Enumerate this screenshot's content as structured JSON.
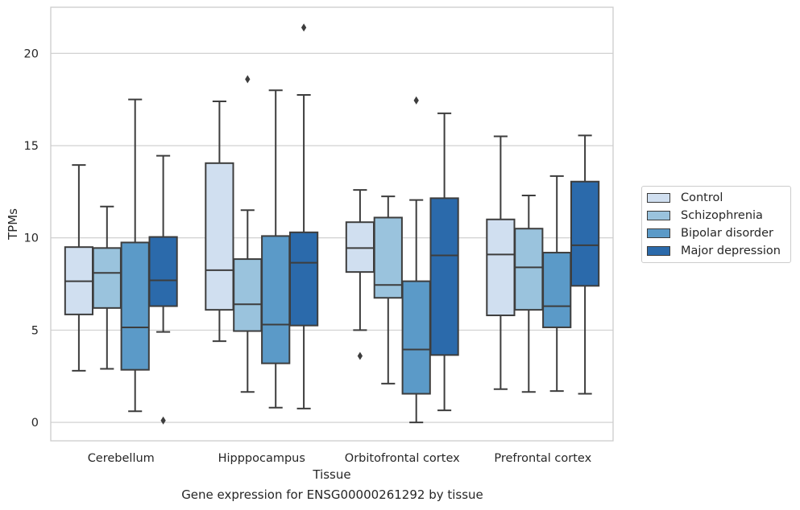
{
  "caption": "Gene expression for ENSG00000261292 by tissue",
  "chart_data": {
    "type": "boxplot",
    "xlabel": "Tissue",
    "ylabel": "TPMs",
    "ylim": [
      -1,
      22.5
    ],
    "yticks": [
      0,
      5,
      10,
      15,
      20
    ],
    "grid": "horizontal",
    "legend_position": "right",
    "categories": [
      "Cerebellum",
      "Hipppocampus",
      "Orbitofrontal cortex",
      "Prefrontal cortex"
    ],
    "series": [
      {
        "name": "Control",
        "color": "#d0dff0",
        "boxes": [
          {
            "whislo": 2.8,
            "q1": 5.85,
            "med": 7.65,
            "q3": 9.5,
            "whishi": 13.95,
            "fliers": []
          },
          {
            "whislo": 4.4,
            "q1": 6.1,
            "med": 8.25,
            "q3": 14.05,
            "whishi": 17.4,
            "fliers": []
          },
          {
            "whislo": 5.0,
            "q1": 8.15,
            "med": 9.45,
            "q3": 10.85,
            "whishi": 12.6,
            "fliers": [
              3.6
            ]
          },
          {
            "whislo": 1.8,
            "q1": 5.8,
            "med": 9.1,
            "q3": 11.0,
            "whishi": 15.5,
            "fliers": []
          }
        ]
      },
      {
        "name": "Schizophrenia",
        "color": "#9ac3dd",
        "boxes": [
          {
            "whislo": 2.9,
            "q1": 6.2,
            "med": 8.1,
            "q3": 9.45,
            "whishi": 11.7,
            "fliers": []
          },
          {
            "whislo": 1.65,
            "q1": 4.95,
            "med": 6.4,
            "q3": 8.85,
            "whishi": 11.5,
            "fliers": [
              18.6
            ]
          },
          {
            "whislo": 2.1,
            "q1": 6.75,
            "med": 7.45,
            "q3": 11.1,
            "whishi": 12.25,
            "fliers": []
          },
          {
            "whislo": 1.65,
            "q1": 6.1,
            "med": 8.4,
            "q3": 10.5,
            "whishi": 12.3,
            "fliers": []
          }
        ]
      },
      {
        "name": "Bipolar disorder",
        "color": "#5b9ac8",
        "boxes": [
          {
            "whislo": 0.6,
            "q1": 2.85,
            "med": 5.15,
            "q3": 9.75,
            "whishi": 17.5,
            "fliers": []
          },
          {
            "whislo": 0.8,
            "q1": 3.2,
            "med": 5.3,
            "q3": 10.1,
            "whishi": 18.0,
            "fliers": []
          },
          {
            "whislo": 0.0,
            "q1": 1.55,
            "med": 3.95,
            "q3": 7.65,
            "whishi": 12.05,
            "fliers": [
              17.45
            ]
          },
          {
            "whislo": 1.7,
            "q1": 5.15,
            "med": 6.3,
            "q3": 9.2,
            "whishi": 13.35,
            "fliers": []
          }
        ]
      },
      {
        "name": "Major depression",
        "color": "#2b6aab",
        "boxes": [
          {
            "whislo": 4.9,
            "q1": 6.3,
            "med": 7.7,
            "q3": 10.05,
            "whishi": 14.45,
            "fliers": [
              0.1
            ]
          },
          {
            "whislo": 0.75,
            "q1": 5.25,
            "med": 8.65,
            "q3": 10.3,
            "whishi": 17.75,
            "fliers": [
              21.4
            ]
          },
          {
            "whislo": 0.65,
            "q1": 3.65,
            "med": 9.05,
            "q3": 12.15,
            "whishi": 16.75,
            "fliers": []
          },
          {
            "whislo": 1.55,
            "q1": 7.4,
            "med": 9.6,
            "q3": 13.05,
            "whishi": 15.55,
            "fliers": []
          }
        ]
      }
    ]
  }
}
